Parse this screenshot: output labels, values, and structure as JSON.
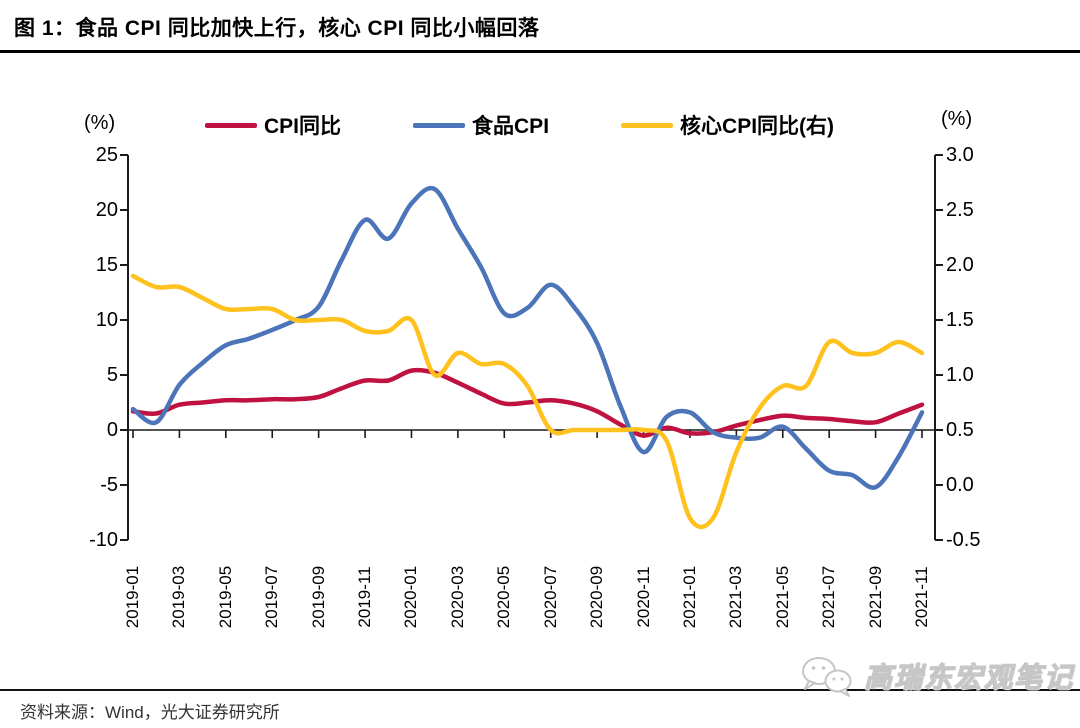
{
  "title": "图 1：食品 CPI 同比加快上行，核心 CPI 同比小幅回落",
  "source": "资料来源：Wind，光大证券研究所",
  "watermark": {
    "icon": "wechat-icon",
    "text": "高瑞东宏观笔记"
  },
  "colors": {
    "cpi": "#c01240",
    "food": "#4c74b9",
    "core": "#ffc11e",
    "axis": "#1a1a1a"
  },
  "chart_data": {
    "type": "line",
    "title": "图 1：食品 CPI 同比加快上行，核心 CPI 同比小幅回落",
    "grid": false,
    "legend_position": "top",
    "x": [
      "2019-01",
      "2019-02",
      "2019-03",
      "2019-04",
      "2019-05",
      "2019-06",
      "2019-07",
      "2019-08",
      "2019-09",
      "2019-10",
      "2019-11",
      "2019-12",
      "2020-01",
      "2020-02",
      "2020-03",
      "2020-04",
      "2020-05",
      "2020-06",
      "2020-07",
      "2020-08",
      "2020-09",
      "2020-10",
      "2020-11",
      "2020-12",
      "2021-01",
      "2021-02",
      "2021-03",
      "2021-04",
      "2021-05",
      "2021-06",
      "2021-07",
      "2021-08",
      "2021-09",
      "2021-10",
      "2021-11"
    ],
    "x_tick_labels": [
      "2019-01",
      "2019-03",
      "2019-05",
      "2019-07",
      "2019-09",
      "2019-11",
      "2020-01",
      "2020-03",
      "2020-05",
      "2020-07",
      "2020-09",
      "2020-11",
      "2021-01",
      "2021-03",
      "2021-05",
      "2021-07",
      "2021-09",
      "2021-11"
    ],
    "left_axis": {
      "unit": "(%)",
      "min": -10,
      "max": 25,
      "ticks": [
        "25",
        "20",
        "15",
        "10",
        "5",
        "0",
        "-5",
        "-10"
      ]
    },
    "right_axis": {
      "unit": "(%)",
      "min": -0.5,
      "max": 3.0,
      "ticks": [
        "3.0",
        "2.5",
        "2.0",
        "1.5",
        "1.0",
        "0.5",
        "0.0",
        "-0.5"
      ]
    },
    "series": [
      {
        "name": "CPI同比",
        "axis": "left",
        "color": "#c01240",
        "values": [
          1.7,
          1.5,
          2.3,
          2.5,
          2.7,
          2.7,
          2.8,
          2.8,
          3.0,
          3.8,
          4.5,
          4.5,
          5.4,
          5.2,
          4.3,
          3.3,
          2.4,
          2.5,
          2.7,
          2.4,
          1.7,
          0.5,
          -0.5,
          0.2,
          -0.3,
          -0.2,
          0.4,
          0.9,
          1.3,
          1.1,
          1.0,
          0.8,
          0.7,
          1.5,
          2.3
        ]
      },
      {
        "name": "食品CPI",
        "axis": "left",
        "color": "#4c74b9",
        "values": [
          1.9,
          0.7,
          4.1,
          6.1,
          7.7,
          8.3,
          9.1,
          10.0,
          11.2,
          15.5,
          19.1,
          17.4,
          20.6,
          21.9,
          18.3,
          14.8,
          10.6,
          11.1,
          13.2,
          11.2,
          7.9,
          2.2,
          -2.0,
          1.2,
          1.6,
          -0.2,
          -0.7,
          -0.7,
          0.3,
          -1.7,
          -3.7,
          -4.1,
          -5.2,
          -2.4,
          1.6
        ]
      },
      {
        "name": "核心CPI同比(右)",
        "axis": "right",
        "color": "#ffc11e",
        "values": [
          1.9,
          1.8,
          1.8,
          1.7,
          1.6,
          1.6,
          1.6,
          1.5,
          1.5,
          1.5,
          1.4,
          1.4,
          1.5,
          1.0,
          1.2,
          1.1,
          1.1,
          0.9,
          0.5,
          0.5,
          0.5,
          0.5,
          0.5,
          0.4,
          -0.3,
          -0.3,
          0.3,
          0.7,
          0.9,
          0.9,
          1.3,
          1.2,
          1.2,
          1.3,
          1.2
        ]
      }
    ]
  }
}
